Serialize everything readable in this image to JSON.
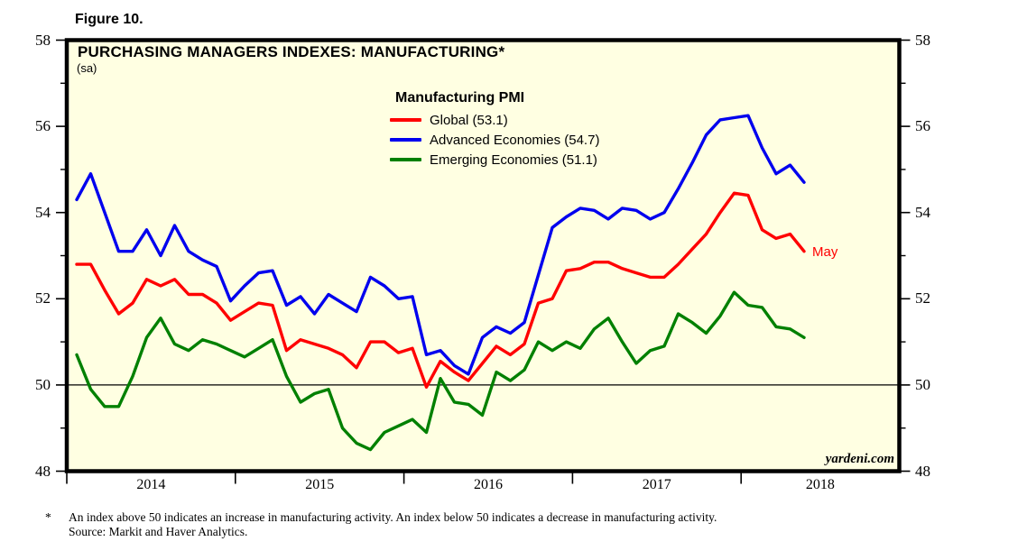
{
  "figure_label": "Figure 10.",
  "watermark": "yardeni.com",
  "footnote": {
    "marker": "*",
    "line1": "An index above 50 indicates an increase in manufacturing activity. An index below 50 indicates a decrease in manufacturing activity.",
    "line2": "Source: Markit and Haver Analytics."
  },
  "chart_data": {
    "type": "line",
    "title": "PURCHASING MANAGERS INDEXES: MANUFACTURING*",
    "subtitle": "(sa)",
    "legend_title": "Manufacturing PMI",
    "frequency": "monthly",
    "x_range": [
      "2014-01",
      "2018-05"
    ],
    "ylim": [
      48,
      58
    ],
    "y_major_ticks": [
      48,
      50,
      52,
      54,
      56,
      58
    ],
    "y_minor_ticks": [
      49,
      51,
      53,
      55,
      57
    ],
    "reference_line": 50,
    "x_year_ticks": [
      "2014",
      "2015",
      "2016",
      "2017",
      "2018"
    ],
    "plot_bg_color": "#FFFFE2",
    "annotation": {
      "label": "May",
      "series": "Global",
      "value": 53.1
    },
    "legend_position": "top-center",
    "grid": "off",
    "series": [
      {
        "name": "Global",
        "legend": "Global (53.1)",
        "color": "#FF0000",
        "latest": 53.1,
        "values": [
          52.8,
          52.8,
          52.2,
          51.65,
          51.9,
          52.45,
          52.3,
          52.45,
          52.1,
          52.1,
          51.9,
          51.5,
          51.7,
          51.9,
          51.85,
          50.8,
          51.05,
          50.95,
          50.85,
          50.7,
          50.4,
          51.0,
          51.0,
          50.75,
          50.85,
          49.95,
          50.55,
          50.3,
          50.1,
          50.5,
          50.9,
          50.7,
          50.95,
          51.9,
          52.0,
          52.65,
          52.7,
          52.85,
          52.85,
          52.7,
          52.6,
          52.5,
          52.5,
          52.8,
          53.15,
          53.5,
          54.0,
          54.45,
          54.4,
          53.6,
          53.4,
          53.5,
          53.1
        ]
      },
      {
        "name": "Advanced Economies",
        "legend": "Advanced Economies (54.7)",
        "color": "#0000EE",
        "latest": 54.7,
        "values": [
          54.3,
          54.9,
          54.0,
          53.1,
          53.1,
          53.6,
          53.0,
          53.7,
          53.1,
          52.9,
          52.75,
          51.95,
          52.3,
          52.6,
          52.65,
          51.85,
          52.05,
          51.65,
          52.1,
          51.9,
          51.7,
          52.5,
          52.3,
          52.0,
          52.05,
          50.7,
          50.8,
          50.45,
          50.25,
          51.1,
          51.35,
          51.2,
          51.45,
          52.55,
          53.65,
          53.9,
          54.1,
          54.05,
          53.85,
          54.1,
          54.05,
          53.85,
          54.0,
          54.55,
          55.15,
          55.8,
          56.15,
          56.2,
          56.25,
          55.5,
          54.9,
          55.1,
          54.7
        ]
      },
      {
        "name": "Emerging Economies",
        "legend": "Emerging Economies (51.1)",
        "color": "#008000",
        "latest": 51.1,
        "values": [
          50.7,
          49.9,
          49.5,
          49.5,
          50.2,
          51.1,
          51.55,
          50.95,
          50.8,
          51.05,
          50.95,
          50.8,
          50.65,
          50.85,
          51.05,
          50.2,
          49.6,
          49.8,
          49.9,
          49.0,
          48.65,
          48.5,
          48.9,
          49.05,
          49.2,
          48.9,
          50.15,
          49.6,
          49.55,
          49.3,
          50.3,
          50.1,
          50.35,
          51.0,
          50.8,
          51.0,
          50.85,
          51.3,
          51.55,
          51.0,
          50.5,
          50.8,
          50.9,
          51.65,
          51.45,
          51.2,
          51.6,
          52.15,
          51.85,
          51.8,
          51.35,
          51.3,
          51.1
        ]
      }
    ]
  }
}
